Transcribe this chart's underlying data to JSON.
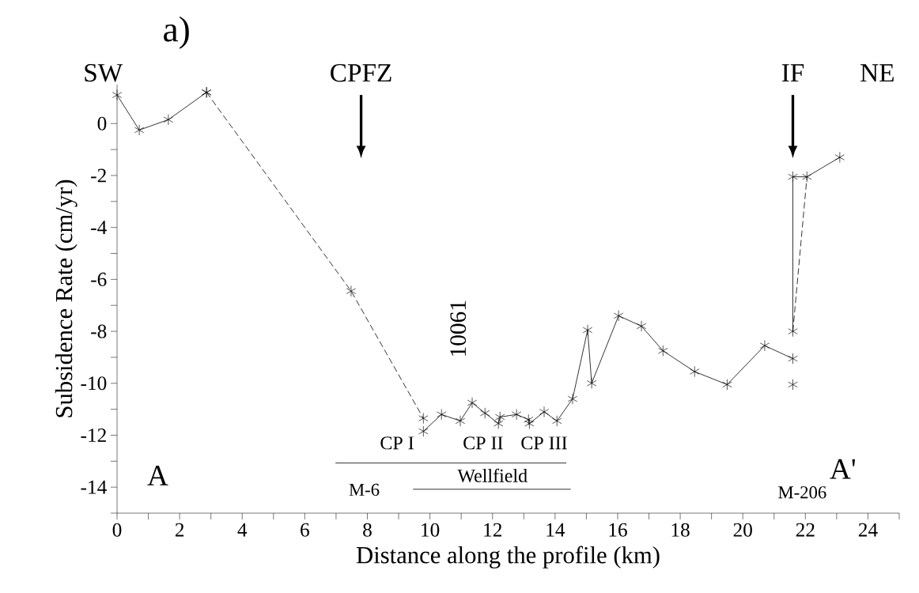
{
  "chart_data": {
    "type": "line",
    "xlabel": "Distance along the profile (km)",
    "ylabel": "Subsidence Rate (cm/yr)",
    "xlim": [
      0,
      25
    ],
    "ylim": [
      -15,
      1.5
    ],
    "xticks": [
      0,
      {
        "value": 1,
        "label": null
      },
      2,
      {
        "value": 3,
        "label": null
      },
      4,
      {
        "value": 5,
        "label": null
      },
      6,
      {
        "value": 7,
        "label": null
      },
      8,
      {
        "value": 9,
        "label": null
      },
      10,
      {
        "value": 11,
        "label": null
      },
      12,
      {
        "value": 13,
        "label": null
      },
      14,
      {
        "value": 15,
        "label": null
      },
      16,
      {
        "value": 17,
        "label": null
      },
      18,
      {
        "value": 19,
        "label": null
      },
      20,
      {
        "value": 21,
        "label": null
      },
      22,
      {
        "value": 23,
        "label": null
      },
      24,
      {
        "value": 25,
        "label": null
      }
    ],
    "yticks": [
      {
        "value": -15,
        "label": null
      },
      -14,
      {
        "value": -13,
        "label": null
      },
      -12,
      {
        "value": -11,
        "label": null
      },
      -10,
      {
        "value": -9,
        "label": null
      },
      -8,
      {
        "value": -7,
        "label": null
      },
      -6,
      {
        "value": -5,
        "label": null
      },
      -4,
      {
        "value": -3,
        "label": null
      },
      -2,
      {
        "value": -1,
        "label": null
      },
      0
    ],
    "series": [
      {
        "color": "#000000",
        "marker": "cross",
        "line_style": "solid",
        "x": [
          0,
          0.71,
          1.64,
          2.86
        ],
        "values": [
          1.1,
          -0.25,
          0.15,
          1.2
        ]
      },
      {
        "color": "#000000",
        "marker": "cross",
        "line_style": "dashed",
        "x": [
          2.86,
          7.48,
          9.79
        ],
        "values": [
          1.2,
          -6.45,
          -11.35
        ]
      },
      {
        "color": "#000000",
        "marker": "cross",
        "line_style": "solid",
        "x": [
          9.79,
          10.37,
          10.97,
          11.35,
          11.76,
          12.19,
          12.24,
          12.77,
          13.15,
          13.18,
          13.65,
          14.06,
          14.56,
          15.04,
          15.17,
          16.03,
          16.76,
          17.45,
          18.46,
          19.5,
          20.7,
          21.6
        ],
        "values": [
          -11.85,
          -11.2,
          -11.45,
          -10.75,
          -11.15,
          -11.55,
          -11.3,
          -11.2,
          -11.4,
          -11.55,
          -11.1,
          -11.45,
          -10.6,
          -7.95,
          -10.0,
          -7.4,
          -7.8,
          -8.75,
          -9.55,
          -10.05,
          -8.55,
          -9.05
        ]
      },
      {
        "color": "#000000",
        "marker": "cross",
        "line_style": "solid",
        "x": [
          21.6,
          21.6,
          22.05,
          23.1
        ],
        "values": [
          -8.0,
          -2.05,
          -2.05,
          -1.3
        ]
      },
      {
        "color": "#000000",
        "marker": "none",
        "line_style": "dashed",
        "x": [
          21.6,
          22.05
        ],
        "values": [
          -8.0,
          -2.05
        ]
      },
      {
        "type": "scatter",
        "color": "#000000",
        "marker": "cross",
        "x": [
          21.6
        ],
        "values": [
          -10.05
        ]
      },
      {
        "color": "#000000",
        "marker": "none",
        "line_style": "solid",
        "x": [
          6.98,
          11.07,
          14.36
        ],
        "values": [
          -13.07,
          -13.07,
          -13.07
        ]
      },
      {
        "color": "#000000",
        "marker": "none",
        "line_style": "solid",
        "x": [
          9.46,
          14.5
        ],
        "values": [
          -14.08,
          -14.08
        ]
      }
    ],
    "annotations": [
      "a)",
      "SW",
      "CPFZ",
      "IF",
      "NE",
      "10061",
      "CP I",
      "CP II",
      "CP III",
      "A",
      "A'",
      "M-6",
      "Wellfield",
      "M-206"
    ]
  }
}
